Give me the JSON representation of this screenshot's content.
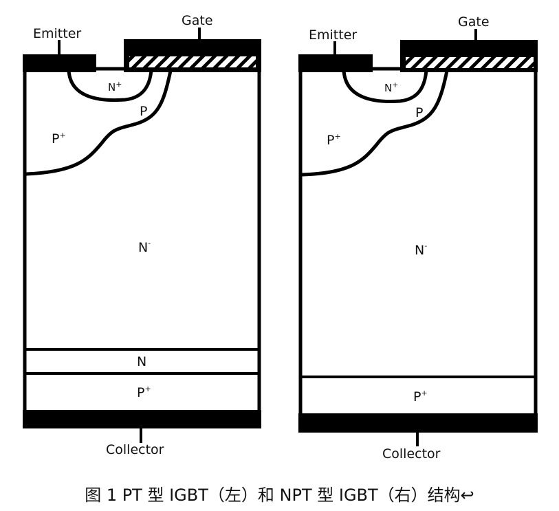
{
  "left": {
    "emitter": "Emitter",
    "gate": "Gate",
    "collector": "Collector",
    "n_plus": "N",
    "n_plus_sup": "+",
    "p": "P",
    "p_plus": "P",
    "p_plus_sup": "+",
    "n_minus": "N",
    "n_minus_sup": "-",
    "n_buffer": "N",
    "p_plus_bottom": "P",
    "p_plus_bottom_sup": "+"
  },
  "right": {
    "emitter": "Emitter",
    "gate": "Gate",
    "collector": "Collector",
    "n_plus": "N",
    "n_plus_sup": "+",
    "p": "P",
    "p_plus": "P",
    "p_plus_sup": "+",
    "n_minus": "N",
    "n_minus_sup": "-",
    "p_plus_bottom": "P",
    "p_plus_bottom_sup": "+"
  },
  "caption": "图  1 PT 型 IGBT（左）和 NPT 型 IGBT（右）结构↩"
}
